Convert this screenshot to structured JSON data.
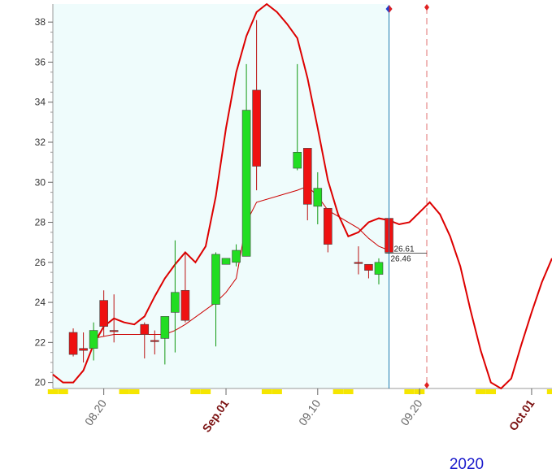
{
  "chart_data": {
    "type": "candlestick",
    "year": "2020",
    "x": [
      "2020-08-17",
      "2020-08-18",
      "2020-08-19",
      "2020-08-20",
      "2020-08-21",
      "2020-08-24",
      "2020-08-25",
      "2020-08-26",
      "2020-08-27",
      "2020-08-28",
      "2020-08-31",
      "2020-09-01",
      "2020-09-02",
      "2020-09-03",
      "2020-09-04",
      "2020-09-08",
      "2020-09-09",
      "2020-09-10",
      "2020-09-11",
      "2020-09-14",
      "2020-09-15",
      "2020-09-16",
      "2020-09-17"
    ],
    "open": [
      22.5,
      21.7,
      21.7,
      24.1,
      22.6,
      22.9,
      22.1,
      22.2,
      23.5,
      24.6,
      23.9,
      25.9,
      26.0,
      26.3,
      34.6,
      30.7,
      31.7,
      28.8,
      28.7,
      26.0,
      25.9,
      25.4,
      28.2
    ],
    "high": [
      22.7,
      22.5,
      23.0,
      24.6,
      24.4,
      23.0,
      22.6,
      23.3,
      27.1,
      26.5,
      26.5,
      26.2,
      26.9,
      35.9,
      38.1,
      35.9,
      31.7,
      30.5,
      28.7,
      26.8,
      25.9,
      26.2,
      28.3
    ],
    "low": [
      21.3,
      21.0,
      21.1,
      22.3,
      22.0,
      21.2,
      21.4,
      20.9,
      21.5,
      23.0,
      21.8,
      25.9,
      25.8,
      26.3,
      29.6,
      30.6,
      28.1,
      27.9,
      26.5,
      25.4,
      25.2,
      24.9,
      26.4
    ],
    "close": [
      21.4,
      21.6,
      22.6,
      22.8,
      22.6,
      22.4,
      22.1,
      23.3,
      24.5,
      23.1,
      26.4,
      26.2,
      26.6,
      33.6,
      30.8,
      31.5,
      28.9,
      29.7,
      26.9,
      26.0,
      25.6,
      26.0,
      26.5
    ],
    "up_color": "#22dd22",
    "down_color": "#ee1111",
    "moving_average": {
      "color": "#cc0000",
      "values": [
        null,
        null,
        22.2,
        22.3,
        22.4,
        22.4,
        22.4,
        22.4,
        22.6,
        22.9,
        24.0,
        24.5,
        25.2,
        28.0,
        29.0,
        29.6,
        29.8,
        29.3,
        28.6,
        27.7,
        27.2,
        26.8,
        26.6
      ]
    },
    "projection": {
      "color": "#dd0000",
      "x": [
        "2020-08-15",
        "2020-08-16",
        "2020-08-17",
        "2020-08-18",
        "2020-08-19",
        "2020-08-20",
        "2020-08-21",
        "2020-08-22",
        "2020-08-23",
        "2020-08-24",
        "2020-08-25",
        "2020-08-26",
        "2020-08-27",
        "2020-08-28",
        "2020-08-29",
        "2020-08-30",
        "2020-08-31",
        "2020-09-01",
        "2020-09-02",
        "2020-09-03",
        "2020-09-04",
        "2020-09-05",
        "2020-09-06",
        "2020-09-07",
        "2020-09-08",
        "2020-09-09",
        "2020-09-10",
        "2020-09-11",
        "2020-09-12",
        "2020-09-13",
        "2020-09-14",
        "2020-09-15",
        "2020-09-16",
        "2020-09-17",
        "2020-09-18",
        "2020-09-19",
        "2020-09-20",
        "2020-09-21",
        "2020-09-22",
        "2020-09-23",
        "2020-09-24",
        "2020-09-25",
        "2020-09-26",
        "2020-09-27",
        "2020-09-28",
        "2020-09-29",
        "2020-09-30",
        "2020-10-01",
        "2020-10-02",
        "2020-10-03"
      ],
      "values": [
        20.4,
        20.0,
        20.0,
        20.6,
        21.9,
        22.8,
        23.2,
        23.0,
        22.9,
        23.3,
        24.3,
        25.2,
        25.9,
        26.5,
        26.0,
        26.8,
        29.3,
        32.7,
        35.5,
        37.3,
        38.5,
        38.9,
        38.5,
        37.9,
        37.2,
        35.2,
        32.7,
        30.1,
        28.4,
        27.3,
        27.5,
        28.0,
        28.2,
        28.1,
        27.9,
        28.0,
        28.5,
        29.0,
        28.4,
        27.3,
        25.8,
        23.6,
        21.6,
        20.0,
        19.7,
        20.2,
        21.9,
        23.5,
        25.0,
        26.2
      ]
    },
    "price_labels": [
      26.61,
      26.46
    ],
    "xlim": [
      "2020-08-15",
      "2020-10-03"
    ],
    "xticks": [
      {
        "value": "2020-08-20",
        "label": "08.20"
      },
      {
        "value": "2020-09-01",
        "label": "Sep.01"
      },
      {
        "value": "2020-09-10",
        "label": "09.10"
      },
      {
        "value": "2020-09-20",
        "label": "09.20"
      },
      {
        "value": "2020-10-01",
        "label": "Oct.01"
      }
    ],
    "ylim": [
      19.7,
      38.9
    ],
    "yticks": [
      20,
      22,
      24,
      26,
      28,
      30,
      32,
      34,
      36,
      38
    ]
  }
}
